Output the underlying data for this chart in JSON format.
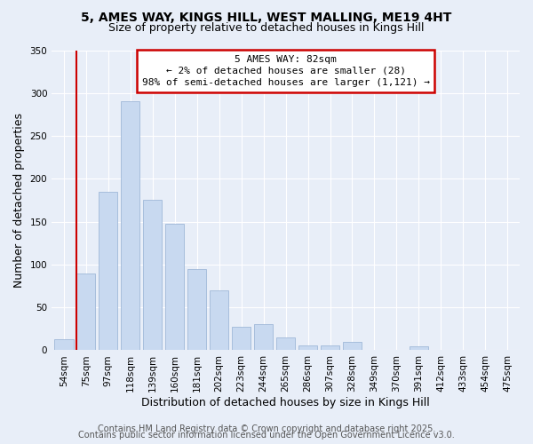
{
  "title_line1": "5, AMES WAY, KINGS HILL, WEST MALLING, ME19 4HT",
  "title_line2": "Size of property relative to detached houses in Kings Hill",
  "xlabel": "Distribution of detached houses by size in Kings Hill",
  "ylabel": "Number of detached properties",
  "bar_labels": [
    "54sqm",
    "75sqm",
    "97sqm",
    "118sqm",
    "139sqm",
    "160sqm",
    "181sqm",
    "202sqm",
    "223sqm",
    "244sqm",
    "265sqm",
    "286sqm",
    "307sqm",
    "328sqm",
    "349sqm",
    "370sqm",
    "391sqm",
    "412sqm",
    "433sqm",
    "454sqm",
    "475sqm"
  ],
  "bar_values": [
    13,
    90,
    185,
    290,
    176,
    148,
    95,
    70,
    27,
    30,
    15,
    6,
    6,
    10,
    0,
    0,
    5,
    0,
    0,
    0,
    0
  ],
  "bar_color": "#c8d9f0",
  "bar_edgecolor": "#a0b8d8",
  "vline_index": 1,
  "vline_color": "#cc0000",
  "annotation_title": "5 AMES WAY: 82sqm",
  "annotation_line2": "← 2% of detached houses are smaller (28)",
  "annotation_line3": "98% of semi-detached houses are larger (1,121) →",
  "annotation_box_edgecolor": "#cc0000",
  "annotation_box_facecolor": "#ffffff",
  "ylim": [
    0,
    350
  ],
  "yticks": [
    0,
    50,
    100,
    150,
    200,
    250,
    300,
    350
  ],
  "footer_line1": "Contains HM Land Registry data © Crown copyright and database right 2025.",
  "footer_line2": "Contains public sector information licensed under the Open Government Licence v3.0.",
  "background_color": "#e8eef8",
  "plot_bg_color": "#e8eef8",
  "grid_color": "#ffffff",
  "title_fontsize": 10,
  "subtitle_fontsize": 9,
  "axis_label_fontsize": 9,
  "tick_fontsize": 7.5,
  "annotation_fontsize": 8,
  "footer_fontsize": 7
}
